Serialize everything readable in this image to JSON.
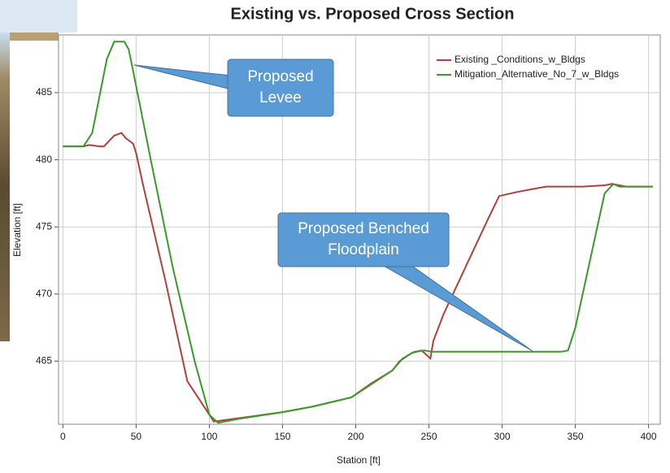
{
  "chart_data": {
    "type": "line",
    "title": "Existing vs. Proposed Cross Section",
    "x_label": "Station [ft]",
    "y_label": "Elevation [ft]",
    "xlim": [
      -3,
      408
    ],
    "ylim": [
      460.3,
      489.3
    ],
    "xticks": [
      0,
      50,
      100,
      150,
      200,
      250,
      300,
      350,
      400
    ],
    "yticks": [
      465,
      470,
      475,
      480,
      485
    ],
    "grid": true,
    "legend": "upper right",
    "series": [
      {
        "name": "Existing _Conditions_w_Bldgs",
        "color": "#b0413e",
        "x": [
          0,
          14,
          18,
          25,
          28,
          35,
          40,
          43,
          48,
          50,
          55,
          70,
          85,
          100,
          103,
          110,
          130,
          150,
          170,
          197,
          210,
          225,
          230,
          238,
          245,
          248,
          251,
          253,
          260,
          275,
          290,
          298,
          310,
          320,
          330,
          340,
          355,
          370,
          375,
          385,
          403
        ],
        "values": [
          481,
          481,
          481.1,
          481,
          481,
          481.8,
          482,
          481.6,
          481.2,
          480.5,
          478,
          471,
          463.5,
          461,
          460.5,
          460.6,
          460.9,
          461.2,
          461.6,
          462.3,
          463.3,
          464.3,
          465,
          465.6,
          465.8,
          465.5,
          465.2,
          466.5,
          468.5,
          472,
          475.5,
          477.3,
          477.6,
          477.8,
          478,
          478,
          478,
          478.1,
          478.2,
          478,
          478
        ]
      },
      {
        "name": "Mitigation_Alternative_No_7_w_Bldgs",
        "color": "#3a9a2a",
        "x": [
          0,
          14,
          20,
          30,
          35,
          42,
          45,
          50,
          60,
          75,
          90,
          100,
          106,
          120,
          150,
          170,
          197,
          225,
          232,
          240,
          247,
          252,
          300,
          340,
          345,
          350,
          370,
          376,
          380,
          403
        ],
        "values": [
          481,
          481,
          482,
          487.5,
          488.8,
          488.8,
          488.2,
          485.5,
          480,
          472,
          465,
          461,
          460.4,
          460.7,
          461.2,
          461.6,
          462.3,
          464.3,
          465.2,
          465.7,
          465.8,
          465.7,
          465.7,
          465.7,
          465.8,
          467.5,
          477.5,
          478.2,
          478,
          478
        ]
      }
    ],
    "annotations": [
      {
        "lines": [
          "Proposed",
          "Levee"
        ]
      },
      {
        "lines": [
          "Proposed Benched",
          "Floodplain"
        ]
      }
    ]
  }
}
